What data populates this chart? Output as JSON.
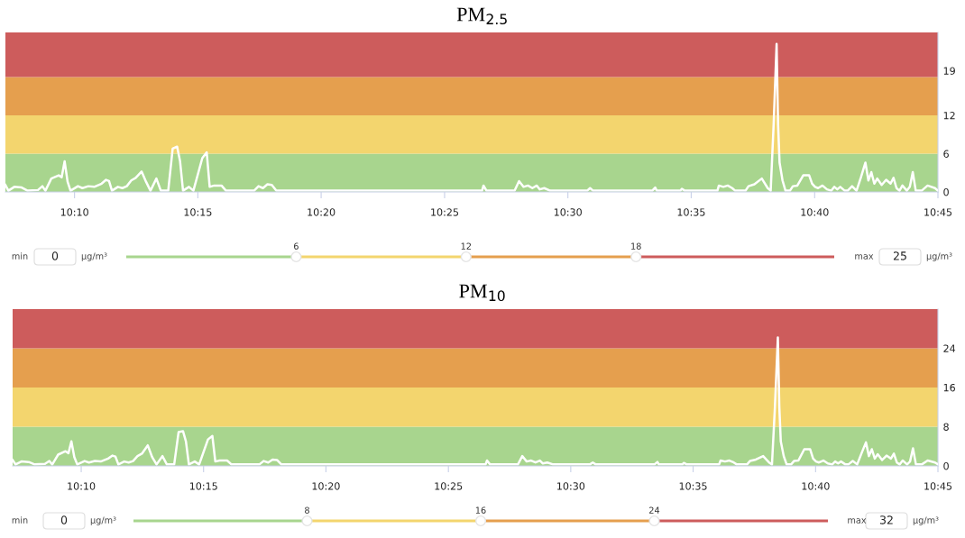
{
  "chart_data": [
    {
      "type": "line",
      "title": "PM$_{2.5}$",
      "series": [
        {
          "color": "#ffffff",
          "x": [
            10.12,
            10.122,
            10.126,
            10.131,
            10.135,
            10.142,
            10.145,
            10.147,
            10.151,
            10.156,
            10.158,
            10.16,
            10.162,
            10.164,
            10.169,
            10.172,
            10.176,
            10.18,
            10.185,
            10.188,
            10.19,
            10.192,
            10.196,
            10.199,
            10.202,
            10.205,
            10.208,
            10.212,
            10.215,
            10.218,
            10.222,
            10.225,
            10.23,
            10.233,
            10.236,
            10.238,
            10.24,
            10.244,
            10.247,
            10.253,
            10.256,
            10.258,
            10.261,
            10.266,
            10.269,
            10.288,
            10.291,
            10.294,
            10.297,
            10.3,
            10.303,
            10.442,
            10.443,
            10.445,
            10.464,
            10.467,
            10.47,
            10.473,
            10.476,
            10.479,
            10.481,
            10.484,
            10.488,
            10.513,
            10.515,
            10.517,
            10.557,
            10.559,
            10.56,
            10.576,
            10.577,
            10.579,
            10.601,
            10.602,
            10.605,
            10.608,
            10.611,
            10.613,
            10.62,
            10.622,
            10.626,
            10.631,
            10.635,
            10.637,
            10.639,
            10.641,
            10.642,
            10.643,
            10.645,
            10.647,
            10.65,
            10.652,
            10.655,
            10.659,
            10.663,
            10.665,
            10.667,
            10.669,
            10.672,
            10.675,
            10.678,
            10.68,
            10.682,
            10.684,
            10.687,
            10.689,
            10.692,
            10.695,
            10.698,
            10.701,
            10.703,
            10.705,
            10.707,
            10.709,
            10.712,
            10.715,
            10.718,
            10.72,
            10.722,
            10.724,
            10.726,
            10.729,
            10.731,
            10.733,
            10.735,
            10.739,
            10.743,
            10.748,
            10.75
          ],
          "values": [
            1.1,
            0.2,
            0.8,
            0.7,
            0.2,
            0.3,
            0.9,
            0.2,
            2.1,
            2.6,
            2.3,
            4.8,
            1.6,
            0.2,
            0.9,
            0.6,
            0.9,
            0.8,
            1.3,
            1.9,
            1.7,
            0.2,
            0.8,
            0.6,
            0.9,
            1.8,
            2.2,
            3.2,
            1.6,
            0.2,
            2.1,
            0.2,
            0.2,
            6.8,
            7.1,
            4.8,
            0.2,
            0.8,
            0.2,
            5.3,
            6.2,
            0.8,
            1.0,
            1.0,
            0.2,
            0.2,
            0.9,
            0.6,
            1.2,
            1.1,
            0.2,
            0.2,
            1.0,
            0.2,
            0.2,
            1.7,
            0.8,
            1.0,
            0.6,
            1.0,
            0.4,
            0.6,
            0.2,
            0.2,
            0.6,
            0.2,
            0.2,
            0.7,
            0.2,
            0.2,
            0.5,
            0.2,
            0.2,
            1.0,
            0.8,
            1.0,
            0.6,
            0.2,
            0.2,
            0.9,
            1.2,
            2.1,
            0.6,
            0.2,
            10.6,
            23.2,
            10.6,
            4.6,
            1.8,
            0.2,
            0.2,
            0.9,
            1.0,
            2.6,
            2.6,
            1.3,
            0.8,
            0.6,
            1.0,
            0.4,
            0.2,
            0.8,
            0.4,
            0.8,
            0.2,
            0.2,
            0.9,
            0.2,
            2.3,
            4.6,
            1.8,
            3.1,
            1.3,
            2.1,
            1.1,
            1.9,
            1.3,
            2.2,
            0.6,
            0.2,
            1.0,
            0.2,
            0.8,
            3.1,
            0.2,
            0.2,
            1.0,
            0.6,
            0.2
          ]
        }
      ],
      "xlim": [
        10.12,
        10.75
      ],
      "xticks": [
        {
          "value": 10.1667,
          "label": "10:10"
        },
        {
          "value": 10.25,
          "label": "10:15"
        },
        {
          "value": 10.3333,
          "label": "10:20"
        },
        {
          "value": 10.4167,
          "label": "10:25"
        },
        {
          "value": 10.5,
          "label": "10:30"
        },
        {
          "value": 10.5833,
          "label": "10:35"
        },
        {
          "value": 10.6667,
          "label": "10:40"
        },
        {
          "value": 10.75,
          "label": "10:45"
        }
      ],
      "ylim": [
        0,
        25
      ],
      "yticks": [
        0,
        6,
        12,
        19
      ],
      "bands": [
        {
          "axis": "y",
          "from": 0,
          "to": 6,
          "color": "#a8d58e"
        },
        {
          "axis": "y",
          "from": 6,
          "to": 12,
          "color": "#f3d56e"
        },
        {
          "axis": "y",
          "from": 12,
          "to": 18,
          "color": "#e59f4e"
        },
        {
          "axis": "y",
          "from": 18,
          "to": 25,
          "color": "#cd5c5c"
        }
      ],
      "annotations": [
        "min",
        "0",
        "µg/m³",
        "6",
        "12",
        "18",
        "max",
        "25",
        "µg/m³"
      ]
    },
    {
      "type": "line",
      "title": "PM$_{10}$",
      "series": [
        {
          "color": "#ffffff",
          "x": [
            10.12,
            10.122,
            10.126,
            10.131,
            10.135,
            10.142,
            10.145,
            10.147,
            10.151,
            10.156,
            10.158,
            10.16,
            10.162,
            10.164,
            10.169,
            10.172,
            10.176,
            10.18,
            10.185,
            10.188,
            10.19,
            10.192,
            10.196,
            10.199,
            10.202,
            10.205,
            10.208,
            10.212,
            10.215,
            10.218,
            10.222,
            10.225,
            10.23,
            10.233,
            10.236,
            10.238,
            10.24,
            10.244,
            10.247,
            10.253,
            10.256,
            10.258,
            10.261,
            10.266,
            10.269,
            10.288,
            10.291,
            10.294,
            10.297,
            10.3,
            10.303,
            10.442,
            10.443,
            10.445,
            10.464,
            10.467,
            10.47,
            10.473,
            10.476,
            10.479,
            10.481,
            10.484,
            10.488,
            10.513,
            10.515,
            10.517,
            10.557,
            10.559,
            10.56,
            10.576,
            10.577,
            10.579,
            10.601,
            10.602,
            10.605,
            10.608,
            10.611,
            10.613,
            10.62,
            10.622,
            10.626,
            10.631,
            10.635,
            10.637,
            10.639,
            10.641,
            10.642,
            10.643,
            10.645,
            10.647,
            10.65,
            10.652,
            10.655,
            10.659,
            10.663,
            10.665,
            10.667,
            10.669,
            10.672,
            10.675,
            10.678,
            10.68,
            10.682,
            10.684,
            10.687,
            10.689,
            10.692,
            10.695,
            10.698,
            10.701,
            10.703,
            10.705,
            10.707,
            10.709,
            10.712,
            10.715,
            10.718,
            10.72,
            10.722,
            10.724,
            10.726,
            10.729,
            10.731,
            10.733,
            10.735,
            10.739,
            10.743,
            10.748,
            10.75
          ],
          "values": [
            1.2,
            0.3,
            0.9,
            0.8,
            0.3,
            0.4,
            1.0,
            0.3,
            2.3,
            3.0,
            2.6,
            5.0,
            1.8,
            0.3,
            1.0,
            0.7,
            1.0,
            0.9,
            1.5,
            2.1,
            1.9,
            0.3,
            0.9,
            0.7,
            1.0,
            2.0,
            2.5,
            4.2,
            1.8,
            0.3,
            2.0,
            0.3,
            0.3,
            6.9,
            7.1,
            5.0,
            0.3,
            0.9,
            0.3,
            5.4,
            6.1,
            0.9,
            1.1,
            1.1,
            0.3,
            0.3,
            1.0,
            0.7,
            1.3,
            1.2,
            0.3,
            0.3,
            1.1,
            0.3,
            0.3,
            2.0,
            0.9,
            1.1,
            0.7,
            1.1,
            0.5,
            0.7,
            0.3,
            0.3,
            0.7,
            0.3,
            0.3,
            0.8,
            0.3,
            0.3,
            0.6,
            0.3,
            0.3,
            1.1,
            0.9,
            1.1,
            0.7,
            0.3,
            0.3,
            1.0,
            1.3,
            2.0,
            0.7,
            0.3,
            12.0,
            26.2,
            12.0,
            5.0,
            2.0,
            0.3,
            0.3,
            1.0,
            1.1,
            3.4,
            3.4,
            1.5,
            0.9,
            0.7,
            1.1,
            0.5,
            0.3,
            0.9,
            0.5,
            0.9,
            0.3,
            0.3,
            1.0,
            0.3,
            2.6,
            4.8,
            2.0,
            3.4,
            1.5,
            2.4,
            1.2,
            2.1,
            1.5,
            2.5,
            0.7,
            0.3,
            1.1,
            0.3,
            0.9,
            3.6,
            0.3,
            0.3,
            1.1,
            0.7,
            0.3
          ]
        }
      ],
      "xlim": [
        10.12,
        10.75
      ],
      "xticks": [
        {
          "value": 10.1667,
          "label": "10:10"
        },
        {
          "value": 10.25,
          "label": "10:15"
        },
        {
          "value": 10.3333,
          "label": "10:20"
        },
        {
          "value": 10.4167,
          "label": "10:25"
        },
        {
          "value": 10.5,
          "label": "10:30"
        },
        {
          "value": 10.5833,
          "label": "10:35"
        },
        {
          "value": 10.6667,
          "label": "10:40"
        },
        {
          "value": 10.75,
          "label": "10:45"
        }
      ],
      "ylim": [
        0,
        32
      ],
      "yticks": [
        0,
        8,
        16,
        24
      ],
      "bands": [
        {
          "axis": "y",
          "from": 0,
          "to": 8,
          "color": "#a8d58e"
        },
        {
          "axis": "y",
          "from": 8,
          "to": 16,
          "color": "#f3d56e"
        },
        {
          "axis": "y",
          "from": 16,
          "to": 24,
          "color": "#e59f4e"
        },
        {
          "axis": "y",
          "from": 24,
          "to": 32,
          "color": "#cd5c5c"
        }
      ],
      "annotations": [
        "min",
        "0",
        "µg/m³",
        "8",
        "16",
        "24",
        "max",
        "32",
        "µg/m³"
      ]
    }
  ]
}
